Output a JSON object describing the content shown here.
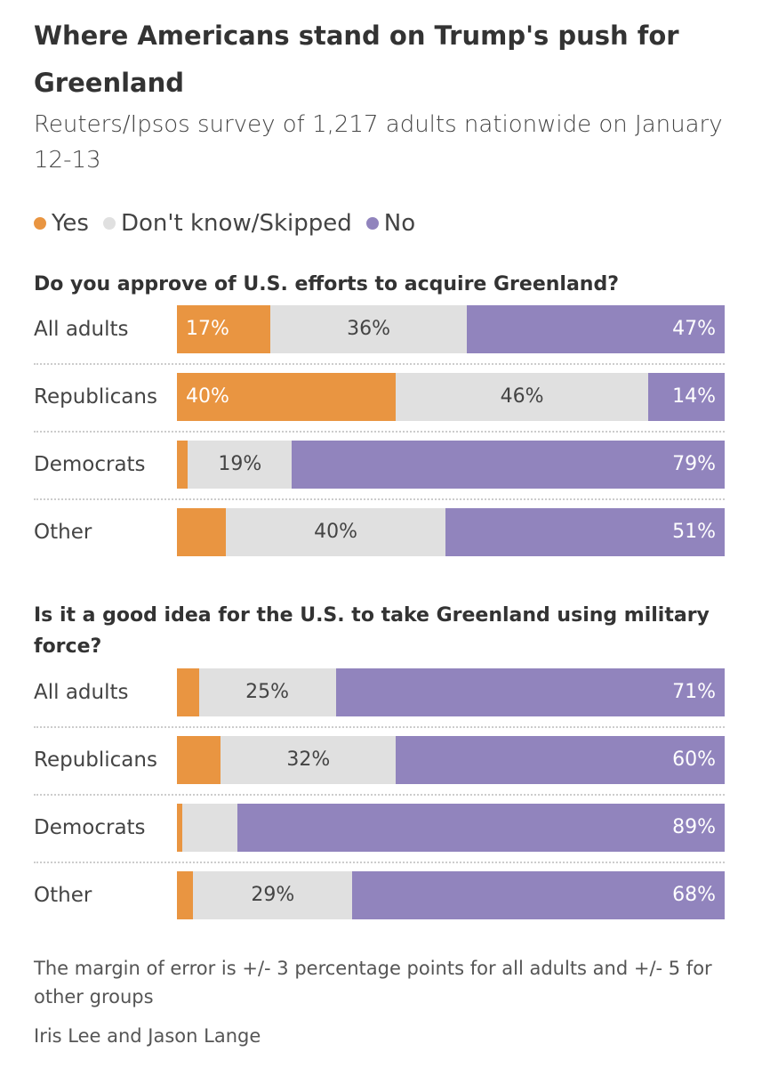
{
  "title": "Where Americans stand on Trump's push for Greenland",
  "subtitle": "Reuters/Ipsos survey of 1,217 adults nationwide on January 12-13",
  "note": "The margin of error is +/- 3 percentage points for all adults and +/- 5 for other groups",
  "credit": "Iris Lee and Jason Lange",
  "chart_data": [
    {
      "type": "bar",
      "orientation": "horizontal",
      "stacked": true,
      "title": "Do you approve of U.S. efforts to acquire Greenland?",
      "categories": [
        "All adults",
        "Republicans",
        "Democrats",
        "Other"
      ],
      "series": [
        {
          "name": "Yes",
          "color": "#e99541",
          "values": [
            17,
            40,
            2,
            9
          ],
          "value_labels": [
            "17%",
            "40%",
            null,
            null
          ]
        },
        {
          "name": "Don't know/Skipped",
          "color": "#e0e0e0",
          "values": [
            36,
            46,
            19,
            40
          ],
          "value_labels": [
            "36%",
            "46%",
            "19%",
            "40%"
          ]
        },
        {
          "name": "No",
          "color": "#9184bd",
          "values": [
            47,
            14,
            79,
            51
          ],
          "value_labels": [
            "47%",
            "14%",
            "79%",
            "51%"
          ]
        }
      ]
    },
    {
      "type": "bar",
      "orientation": "horizontal",
      "stacked": true,
      "title": "Is it a good idea for the U.S. to take Greenland using military force?",
      "categories": [
        "All adults",
        "Republicans",
        "Democrats",
        "Other"
      ],
      "series": [
        {
          "color": "#e99541",
          "values": [
            4,
            8,
            1,
            3
          ],
          "value_labels": [
            null,
            null,
            null,
            null
          ]
        },
        {
          "color": "#e0e0e0",
          "values": [
            25,
            32,
            10,
            29
          ],
          "value_labels": [
            "25%",
            "32%",
            null,
            "29%"
          ]
        },
        {
          "color": "#9184bd",
          "values": [
            71,
            60,
            89,
            68
          ],
          "value_labels": [
            "71%",
            "60%",
            "89%",
            "68%"
          ]
        }
      ]
    }
  ]
}
